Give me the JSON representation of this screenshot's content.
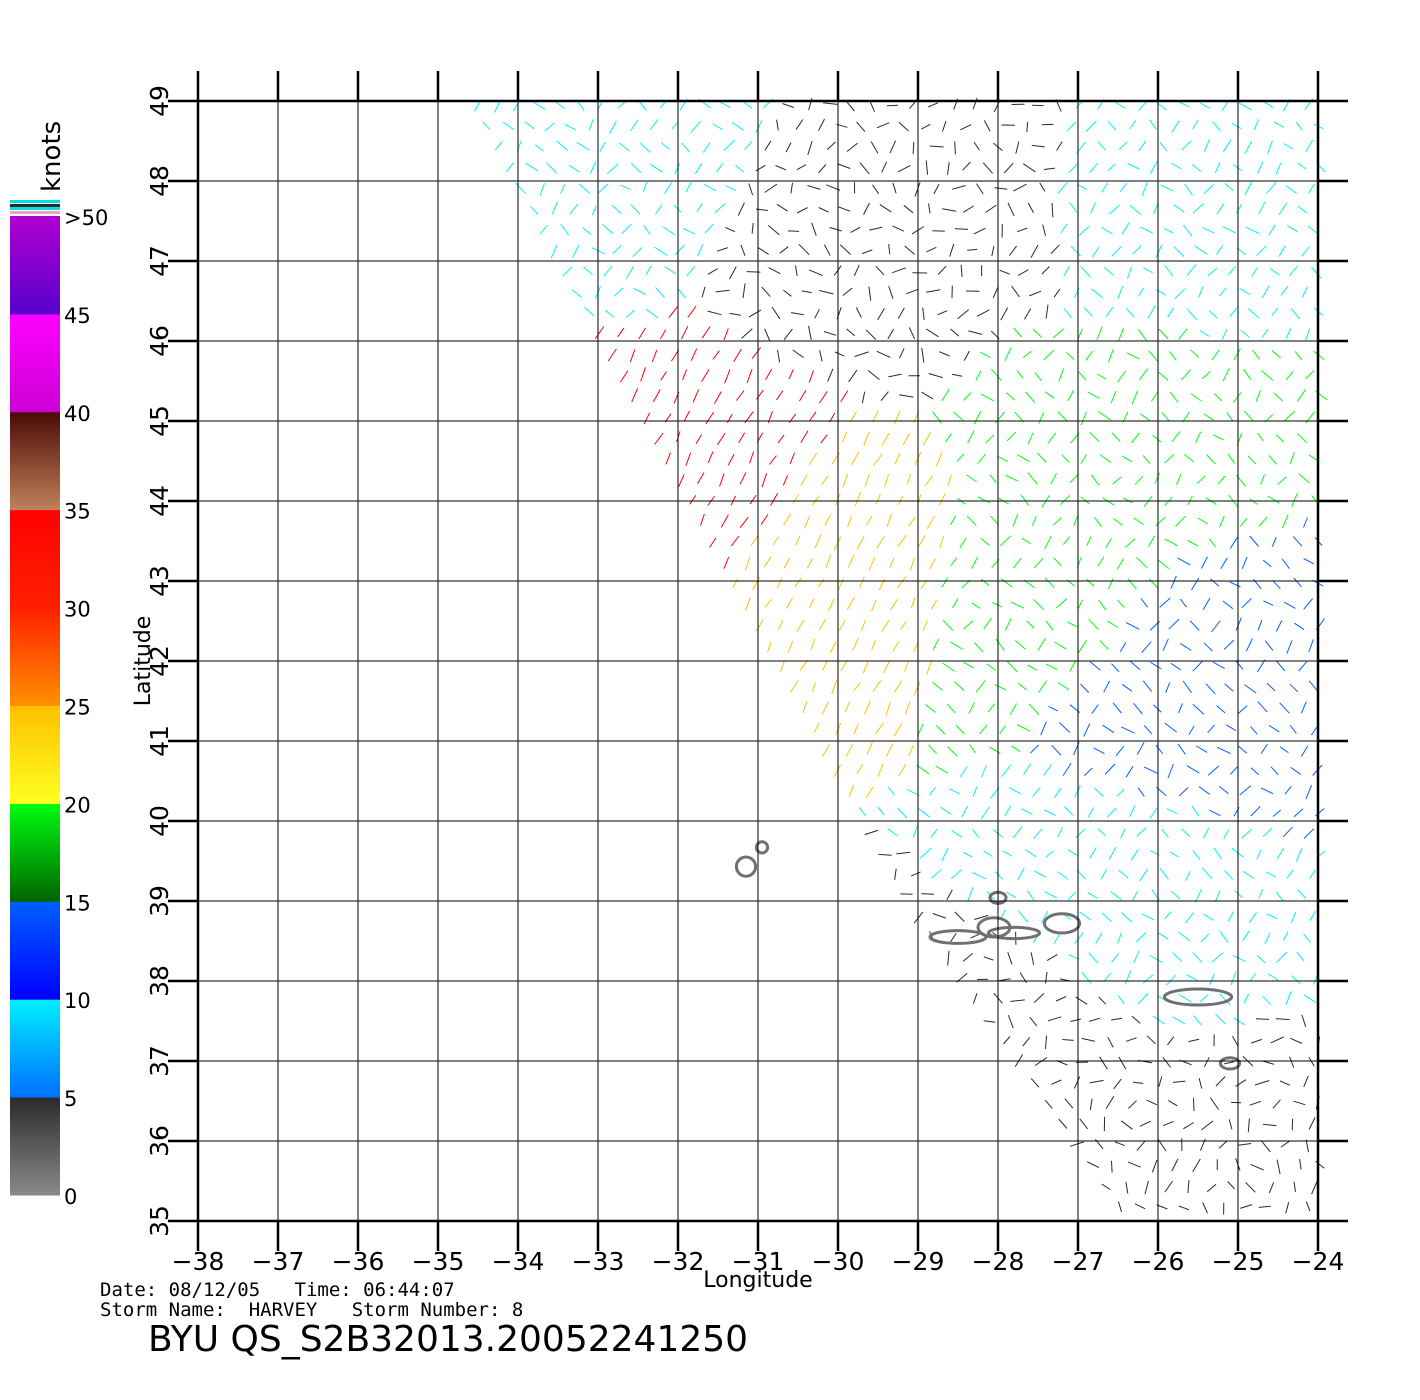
{
  "chart_data": {
    "type": "wind-vector-map",
    "xlabel": "Longitude",
    "ylabel": "Latitude",
    "xlim": [
      -38,
      -24
    ],
    "ylim": [
      35,
      49
    ],
    "x_ticks": [
      "−38",
      "−37",
      "−36",
      "−35",
      "−34",
      "−33",
      "−32",
      "−31",
      "−30",
      "−29",
      "−28",
      "−27",
      "−26",
      "−25",
      "−24"
    ],
    "y_ticks": [
      "35",
      "36",
      "37",
      "38",
      "39",
      "40",
      "41",
      "42",
      "43",
      "44",
      "45",
      "46",
      "47",
      "48",
      "49"
    ],
    "grid": true,
    "colorbar": {
      "unit": "knots",
      "labels": [
        "0",
        "5",
        "10",
        "15",
        "20",
        "25",
        "30",
        "35",
        "40",
        "45",
        ">50"
      ],
      "bands": [
        {
          "from": 0,
          "to": 5,
          "color_top": "#2a2a2a",
          "color_bottom": "#8a8a8a"
        },
        {
          "from": 5,
          "to": 10,
          "color_top": "#00f0ff",
          "color_bottom": "#0070ff"
        },
        {
          "from": 10,
          "to": 15,
          "color_top": "#0060ff",
          "color_bottom": "#0000ff"
        },
        {
          "from": 15,
          "to": 20,
          "color_top": "#00ff10",
          "color_bottom": "#006400"
        },
        {
          "from": 20,
          "to": 25,
          "color_top": "#ffc000",
          "color_bottom": "#ffff20"
        },
        {
          "from": 25,
          "to": 30,
          "color_top": "#ff2000",
          "color_bottom": "#ff9000"
        },
        {
          "from": 30,
          "to": 35,
          "color_top": "#ff0000",
          "color_bottom": "#ff2000"
        },
        {
          "from": 35,
          "to": 40,
          "color_top": "#4a0a06",
          "color_bottom": "#c0825a"
        },
        {
          "from": 40,
          "to": 45,
          "color_top": "#ff00ff",
          "color_bottom": "#cc00d6"
        },
        {
          "from": 45,
          "to": 50,
          "color_top": "#b000d0",
          "color_bottom": "#5800cc"
        }
      ]
    },
    "swath": {
      "west_edge": [
        [
          -34.6,
          49
        ],
        [
          -29.1,
          38.9
        ],
        [
          -26.4,
          35
        ]
      ],
      "east_edge": [
        [
          -24,
          49
        ],
        [
          -24,
          35
        ]
      ]
    },
    "speed_zones": [
      {
        "center": [
          -28.4,
          47.8
        ],
        "speed_knots": 3
      },
      {
        "center": [
          -29.6,
          47.2
        ],
        "speed_knots": 4
      },
      {
        "center": [
          -25.2,
          35.8
        ],
        "speed_knots": 4
      },
      {
        "center": [
          -27.5,
          37.6
        ],
        "speed_knots": 4
      },
      {
        "center": [
          -31.8,
          44.4
        ],
        "speed_knots": 33
      },
      {
        "center": [
          -29.8,
          43.4
        ],
        "speed_knots": 22
      },
      {
        "center": [
          -27.6,
          43.2
        ],
        "speed_knots": 19
      },
      {
        "center": [
          -26.6,
          44.6
        ],
        "speed_knots": 18
      },
      {
        "center": [
          -25.2,
          41.8
        ],
        "speed_knots": 13
      },
      {
        "center": [
          -26.0,
          47.8
        ],
        "speed_knots": 8
      },
      {
        "center": [
          -33.0,
          48.2
        ],
        "speed_knots": 9
      },
      {
        "center": [
          -26.5,
          38.6
        ],
        "speed_knots": 9
      }
    ],
    "islands": [
      {
        "name": "",
        "center": [
          -31.15,
          39.43
        ],
        "rx": 0.12,
        "ry": 0.12
      },
      {
        "name": "",
        "center": [
          -30.95,
          39.67
        ],
        "rx": 0.07,
        "ry": 0.07
      },
      {
        "name": "",
        "center": [
          -28.5,
          38.55
        ],
        "rx": 0.35,
        "ry": 0.08
      },
      {
        "name": "",
        "center": [
          -27.8,
          38.6
        ],
        "rx": 0.32,
        "ry": 0.07
      },
      {
        "name": "",
        "center": [
          -28.05,
          38.67
        ],
        "rx": 0.2,
        "ry": 0.12
      },
      {
        "name": "",
        "center": [
          -28.0,
          39.04
        ],
        "rx": 0.1,
        "ry": 0.07
      },
      {
        "name": "",
        "center": [
          -27.2,
          38.72
        ],
        "rx": 0.22,
        "ry": 0.12
      },
      {
        "name": "",
        "center": [
          -25.5,
          37.8
        ],
        "rx": 0.42,
        "ry": 0.1
      },
      {
        "name": "",
        "center": [
          -25.1,
          36.97
        ],
        "rx": 0.12,
        "ry": 0.07
      }
    ]
  },
  "footer": {
    "date_label": "Date:",
    "date": "08/12/05",
    "time_label": "Time:",
    "time": "06:44:07",
    "storm_name_label": "Storm Name:",
    "storm_name": "HARVEY",
    "storm_number_label": "Storm Number:",
    "storm_number": "8",
    "product_id": "BYU QS_S2B32013.20052241250"
  }
}
